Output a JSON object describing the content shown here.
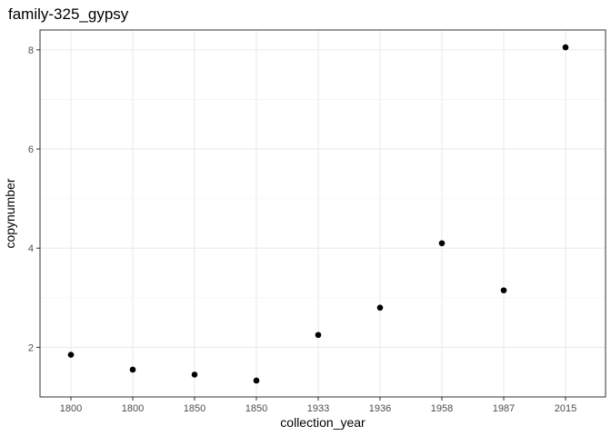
{
  "chart_data": {
    "type": "scatter",
    "title": "family-325_gypsy",
    "xlabel": "collection_year",
    "ylabel": "copynumber",
    "categories": [
      "1800",
      "1800",
      "1850",
      "1850",
      "1933",
      "1936",
      "1958",
      "1987",
      "2015"
    ],
    "values": [
      1.85,
      1.55,
      1.45,
      1.33,
      2.25,
      2.8,
      4.1,
      3.15,
      8.05
    ],
    "y_ticks": [
      2,
      4,
      6,
      8
    ],
    "ylim": [
      1.0,
      8.4
    ],
    "grid": true,
    "theme": "bw",
    "point_color": "#000000"
  }
}
